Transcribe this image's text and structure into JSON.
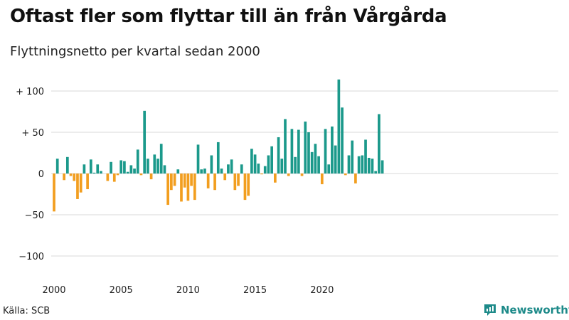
{
  "header": {
    "title": "Oftast fler som flyttar till än från Vårgårda",
    "subtitle": "Flyttningsnetto per kvartal sedan 2000"
  },
  "footer": {
    "source": "Källa: SCB",
    "brand": "Newsworthy"
  },
  "colors": {
    "positive": "#1b998b",
    "negative": "#f29e1f",
    "grid": "#d9d9d9",
    "brand": "#1d8a89"
  },
  "chart_data": {
    "type": "bar",
    "title": "Oftast fler som flyttar till än från Vårgårda",
    "subtitle": "Flyttningsnetto per kvartal sedan 2000",
    "xlabel": "",
    "ylabel": "",
    "x_start": "2000 Q1",
    "x_ticks": [
      "2000",
      "2005",
      "2010",
      "2015",
      "2020"
    ],
    "y_ticks": [
      {
        "value": 100,
        "label": "+ 100"
      },
      {
        "value": 50,
        "label": "+  50"
      },
      {
        "value": 0,
        "label": "0"
      },
      {
        "value": -50,
        "label": "−50"
      },
      {
        "value": -100,
        "label": "−100"
      }
    ],
    "ylim": [
      -125,
      125
    ],
    "grid": true,
    "values": [
      -46,
      18,
      0,
      -8,
      20,
      -3,
      -9,
      -31,
      -23,
      11,
      -19,
      17,
      1,
      11,
      3,
      0,
      -9,
      14,
      -10,
      -2,
      16,
      15,
      2,
      10,
      6,
      29,
      -2,
      76,
      18,
      -7,
      23,
      18,
      36,
      10,
      -38,
      -20,
      -15,
      5,
      -34,
      -17,
      -33,
      -15,
      -32,
      35,
      5,
      6,
      -18,
      22,
      -20,
      38,
      6,
      -8,
      11,
      17,
      -20,
      -15,
      11,
      -32,
      -27,
      30,
      23,
      12,
      -1,
      9,
      22,
      33,
      -11,
      44,
      18,
      66,
      -3,
      54,
      20,
      53,
      -3,
      63,
      50,
      26,
      36,
      21,
      -13,
      54,
      11,
      57,
      34,
      114,
      80,
      -2,
      22,
      40,
      -12,
      21,
      22,
      41,
      19,
      18,
      3,
      72,
      16
    ]
  }
}
